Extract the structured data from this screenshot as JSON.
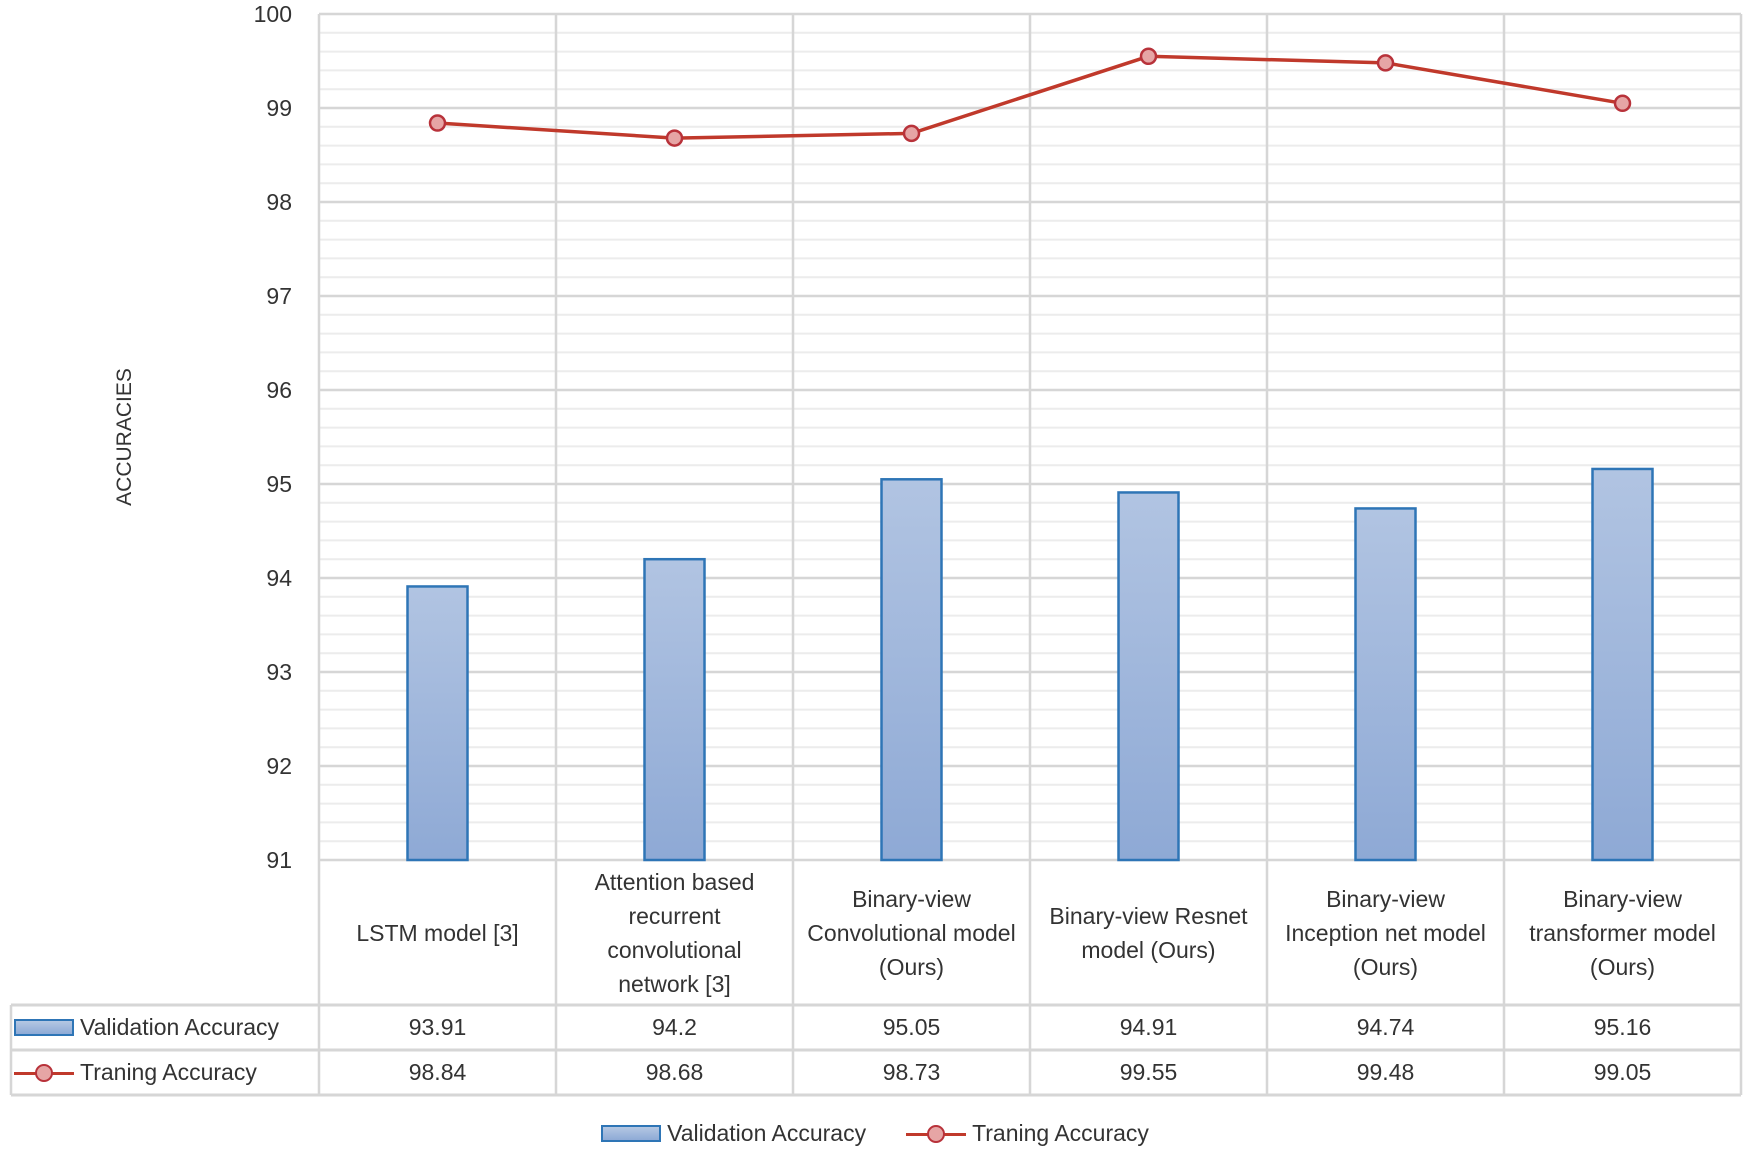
{
  "chart_data": {
    "type": "bar",
    "ylabel": "ACCURACIES",
    "ylim": [
      91,
      100
    ],
    "yticks": [
      "91",
      "92",
      "93",
      "94",
      "95",
      "96",
      "97",
      "98",
      "99",
      "100"
    ],
    "grid": true,
    "minor_grid_step": 0.2,
    "legend_placement": "bottom",
    "categories": [
      "LSTM model [3]",
      "Attention based recurrent convolutional network [3]",
      "Binary-view Convolutional model (Ours)",
      "Binary-view Resnet model (Ours)",
      "Binary-view Inception net model (Ours)",
      "Binary-view transformer model (Ours)"
    ],
    "series": [
      {
        "name": "Validation Accuracy",
        "kind": "bar",
        "color": "#2e75b6",
        "fill": "#a3b9dc",
        "values": [
          93.91,
          94.2,
          95.05,
          94.91,
          94.74,
          95.16
        ],
        "labels": [
          "93.91",
          "94.2",
          "95.05",
          "94.91",
          "94.74",
          "95.16"
        ]
      },
      {
        "name": "Traning Accuracy",
        "kind": "line",
        "color": "#c0392b",
        "marker_fill": "#e6a5a5",
        "values": [
          98.84,
          98.68,
          98.73,
          99.55,
          99.48,
          99.05
        ],
        "labels": [
          "98.84",
          "98.68",
          "98.73",
          "99.55",
          "99.48",
          "99.05"
        ]
      }
    ]
  }
}
